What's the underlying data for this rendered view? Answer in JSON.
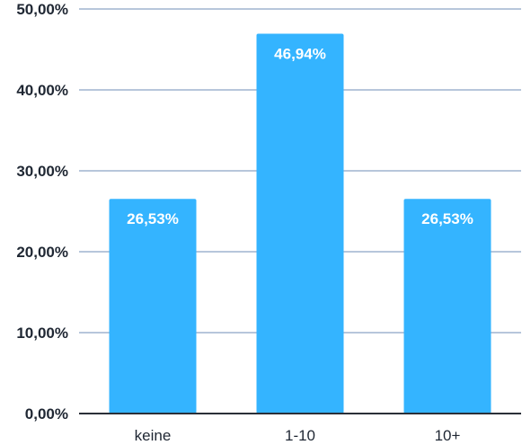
{
  "chart_data": {
    "type": "bar",
    "categories": [
      "keine",
      "1-10",
      "10+"
    ],
    "values": [
      26.53,
      46.94,
      26.53
    ],
    "data_labels": [
      "26,53%",
      "46,94%",
      "26,53%"
    ],
    "y_ticks": [
      0,
      10,
      20,
      30,
      40,
      50
    ],
    "y_tick_labels": [
      "0,00%",
      "10,00%",
      "20,00%",
      "30,00%",
      "40,00%",
      "50,00%"
    ],
    "ylim": [
      0,
      50
    ],
    "grid": true,
    "legend": "none",
    "colors": {
      "bar": "#34b4ff",
      "gridline": "#9fb3cf",
      "axis": "#2a2f38",
      "text": "#1f2733",
      "data_label": "#ffffff"
    }
  }
}
